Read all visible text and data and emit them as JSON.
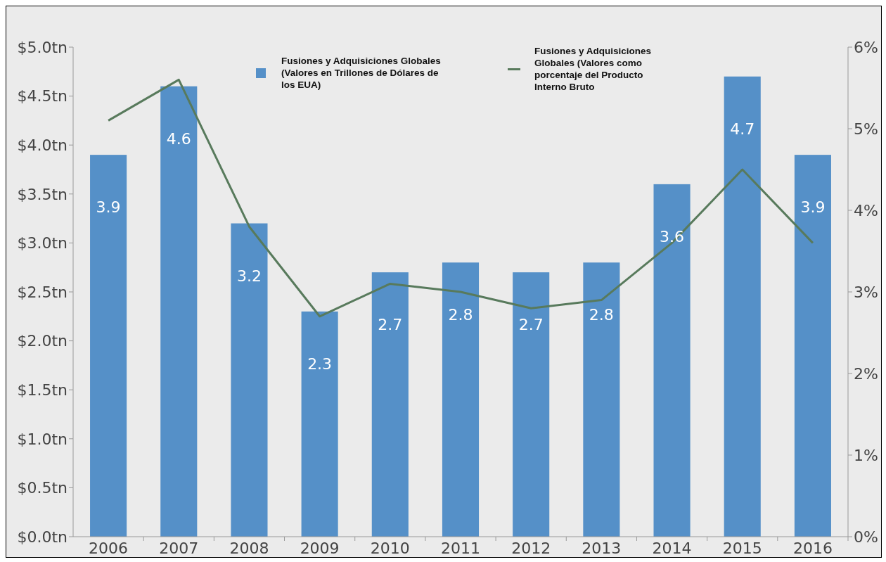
{
  "chart_data": {
    "type": "bar",
    "categories": [
      "2006",
      "2007",
      "2008",
      "2009",
      "2010",
      "2011",
      "2012",
      "2013",
      "2014",
      "2015",
      "2016"
    ],
    "series": [
      {
        "name": "Fusiones y Adquisiciones   Globales (Valores en Trillones de Dólares de los EUA)",
        "color": "#5590c8",
        "values": [
          3.9,
          4.6,
          3.2,
          2.3,
          2.7,
          2.8,
          2.7,
          2.8,
          3.6,
          4.7,
          3.9
        ],
        "value_labels": [
          "3.9",
          "4.6",
          "3.2",
          "2.3",
          "2.7",
          "2.8",
          "2.7",
          "2.8",
          "3.6",
          "4.7",
          "3.9"
        ]
      },
      {
        "name": "Fusiones y Adquisiciones Globales (Valores como porcentaje del Producto Interno Bruto",
        "type": "line",
        "axis": "y2",
        "color": "#587a5c",
        "values": [
          5.1,
          5.6,
          3.8,
          2.7,
          3.1,
          3.0,
          2.8,
          2.9,
          3.6,
          4.5,
          3.6
        ]
      }
    ],
    "ylim": [
      0,
      5
    ],
    "yticks": [
      {
        "value": 0,
        "label": "$0.0tn"
      },
      {
        "value": 0.5,
        "label": "$0.5tn"
      },
      {
        "value": 1,
        "label": "$1.0tn"
      },
      {
        "value": 1.5,
        "label": "$1.5tn"
      },
      {
        "value": 2,
        "label": "$2.0tn"
      },
      {
        "value": 2.5,
        "label": "$2.5tn"
      },
      {
        "value": 3,
        "label": "$3.0tn"
      },
      {
        "value": 3.5,
        "label": "$3.5tn"
      },
      {
        "value": 4,
        "label": "$4.0tn"
      },
      {
        "value": 4.5,
        "label": "$4.5tn"
      },
      {
        "value": 5,
        "label": "$5.0tn"
      }
    ],
    "y2lim": [
      0,
      6
    ],
    "y2ticks": [
      {
        "value": 0,
        "label": "0%"
      },
      {
        "value": 1,
        "label": "1%"
      },
      {
        "value": 2,
        "label": "2%"
      },
      {
        "value": 3,
        "label": "3%"
      },
      {
        "value": 4,
        "label": "4%"
      },
      {
        "value": 5,
        "label": "5%"
      },
      {
        "value": 6,
        "label": "6%"
      }
    ],
    "legend": "top",
    "grid": false,
    "marker": "none",
    "line_style": "solid"
  }
}
